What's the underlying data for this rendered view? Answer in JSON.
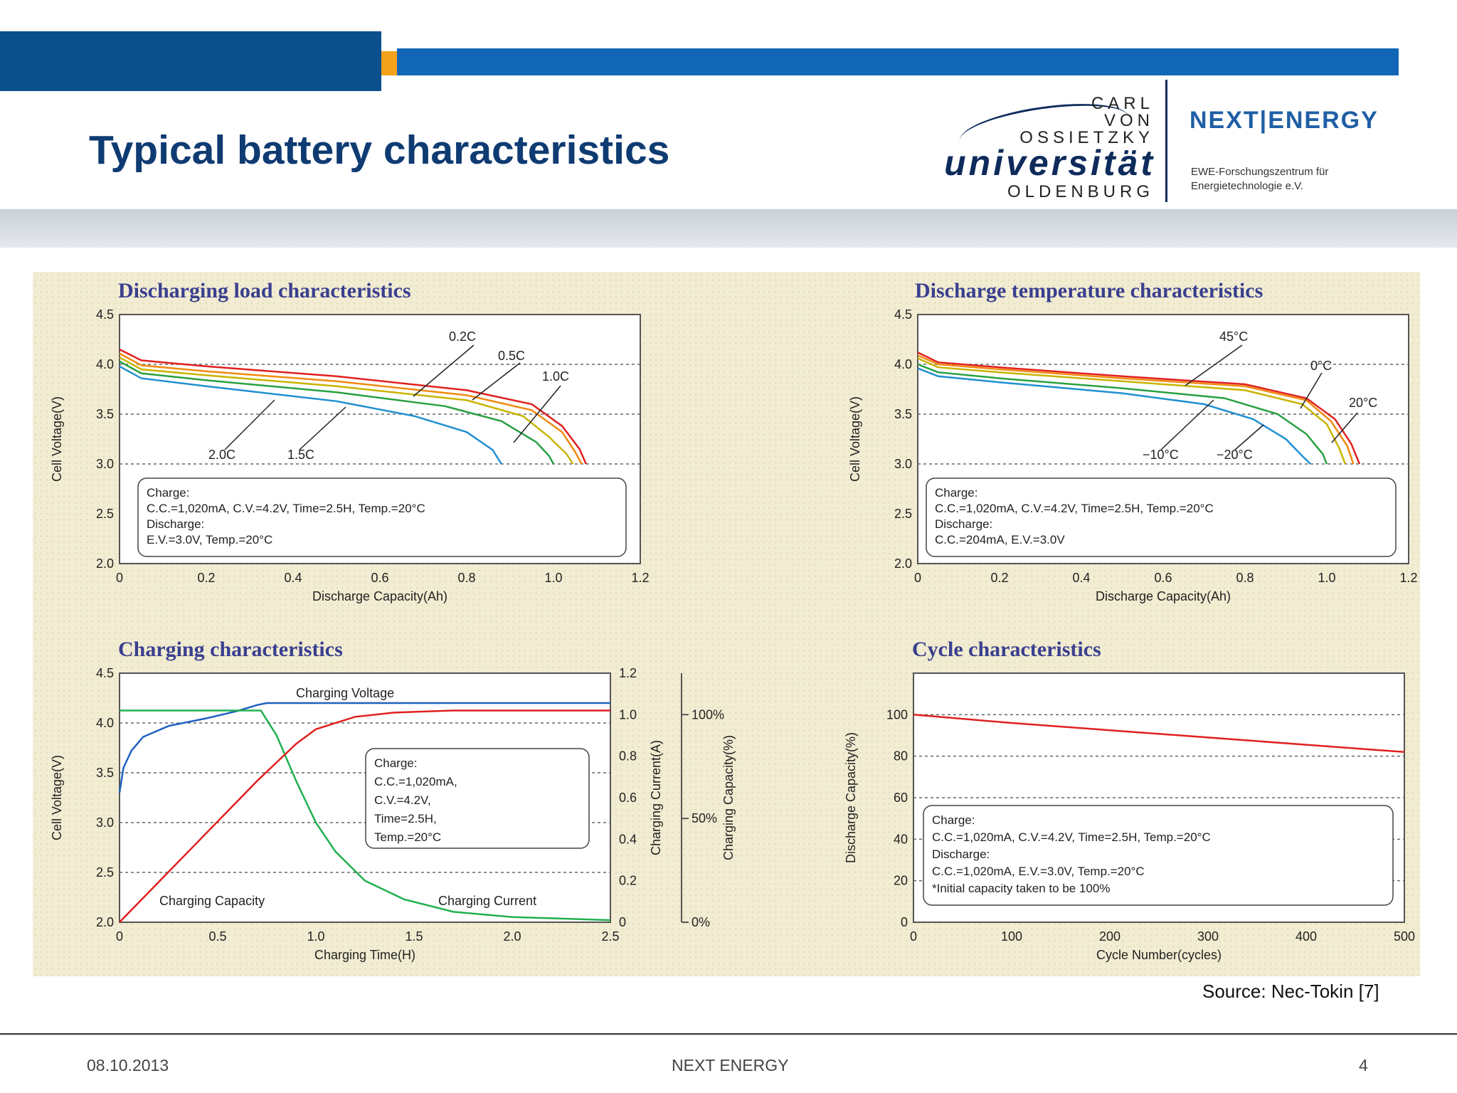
{
  "slide": {
    "title": "Typical battery characteristics",
    "source": "Source: Nec-Tokin [7]",
    "footer": {
      "date": "08.10.2013",
      "center": "NEXT ENERGY",
      "page": "4"
    }
  },
  "logos": {
    "uni_lines": [
      "CARL",
      "VON",
      "OSSIETZKY"
    ],
    "uni_name": "universität",
    "uni_city": "OLDENBURG",
    "ne_name": "NEXT|ENERGY",
    "ne_sub": "EWE-Forschungszentrum für Energietechnologie e.V."
  },
  "colors": {
    "title": "#0e3b72",
    "band_dark": "#0b4f8c",
    "band_blue": "#1266b6",
    "band_orange": "#f5a21b",
    "chart_title": "#3a3f8f",
    "panel_bg": "#f1ecd2"
  },
  "chart_data": [
    {
      "id": "discharge-load",
      "type": "line",
      "title": "Discharging load characteristics",
      "xlabel": "Discharge Capacity(Ah)",
      "ylabel": "Cell Voltage(V)",
      "xlim": [
        0,
        1.2
      ],
      "ylim": [
        2.0,
        4.5
      ],
      "xticks": [
        "0",
        "0.2",
        "0.4",
        "0.6",
        "0.8",
        "1.0",
        "1.2"
      ],
      "yticks": [
        "2.0",
        "2.5",
        "3.0",
        "3.5",
        "4.0",
        "4.5"
      ],
      "grid_y": [
        3.0,
        3.5,
        4.0
      ],
      "series": [
        {
          "name": "0.2C",
          "color": "#e02020",
          "points": [
            [
              0,
              4.15
            ],
            [
              0.05,
              4.04
            ],
            [
              0.2,
              3.98
            ],
            [
              0.5,
              3.88
            ],
            [
              0.8,
              3.74
            ],
            [
              0.95,
              3.6
            ],
            [
              1.02,
              3.38
            ],
            [
              1.06,
              3.15
            ],
            [
              1.075,
              3.0
            ]
          ]
        },
        {
          "name": "0.5C",
          "color": "#f08a10",
          "points": [
            [
              0,
              4.11
            ],
            [
              0.05,
              3.99
            ],
            [
              0.2,
              3.93
            ],
            [
              0.5,
              3.83
            ],
            [
              0.8,
              3.69
            ],
            [
              0.95,
              3.54
            ],
            [
              1.02,
              3.32
            ],
            [
              1.05,
              3.12
            ],
            [
              1.065,
              3.0
            ]
          ]
        },
        {
          "name": "1.0C",
          "color": "#c8b400",
          "points": [
            [
              0,
              4.07
            ],
            [
              0.05,
              3.95
            ],
            [
              0.2,
              3.89
            ],
            [
              0.5,
              3.78
            ],
            [
              0.8,
              3.64
            ],
            [
              0.93,
              3.48
            ],
            [
              0.99,
              3.27
            ],
            [
              1.03,
              3.1
            ],
            [
              1.045,
              3.0
            ]
          ]
        },
        {
          "name": "1.5C",
          "color": "#28a040",
          "points": [
            [
              0,
              4.03
            ],
            [
              0.05,
              3.91
            ],
            [
              0.2,
              3.84
            ],
            [
              0.5,
              3.72
            ],
            [
              0.75,
              3.58
            ],
            [
              0.88,
              3.43
            ],
            [
              0.96,
              3.22
            ],
            [
              0.99,
              3.08
            ],
            [
              1.0,
              3.0
            ]
          ]
        },
        {
          "name": "2.0C",
          "color": "#2090d0",
          "points": [
            [
              0,
              3.98
            ],
            [
              0.05,
              3.86
            ],
            [
              0.2,
              3.78
            ],
            [
              0.5,
              3.63
            ],
            [
              0.68,
              3.48
            ],
            [
              0.8,
              3.32
            ],
            [
              0.86,
              3.14
            ],
            [
              0.88,
              3.0
            ]
          ]
        }
      ],
      "box_lines": [
        "Charge:",
        "C.C.=1,020mA, C.V.=4.2V, Time=2.5H, Temp.=20°C",
        "Discharge:",
        "E.V.=3.0V,  Temp.=20°C"
      ]
    },
    {
      "id": "discharge-temperature",
      "type": "line",
      "title": "Discharge temperature characteristics",
      "xlabel": "Discharge Capacity(Ah)",
      "ylabel": "Cell Voltage(V)",
      "xlim": [
        0,
        1.2
      ],
      "ylim": [
        2.0,
        4.5
      ],
      "xticks": [
        "0",
        "0.2",
        "0.4",
        "0.6",
        "0.8",
        "1.0",
        "1.2"
      ],
      "yticks": [
        "2.0",
        "2.5",
        "3.0",
        "3.5",
        "4.0",
        "4.5"
      ],
      "grid_y": [
        3.0,
        3.5,
        4.0
      ],
      "series": [
        {
          "name": "45°C",
          "color": "#e02020",
          "points": [
            [
              0,
              4.12
            ],
            [
              0.05,
              4.02
            ],
            [
              0.2,
              3.97
            ],
            [
              0.5,
              3.88
            ],
            [
              0.8,
              3.8
            ],
            [
              0.95,
              3.66
            ],
            [
              1.02,
              3.45
            ],
            [
              1.06,
              3.2
            ],
            [
              1.08,
              3.0
            ]
          ]
        },
        {
          "name": "0°C",
          "color": "#f08a10",
          "points": [
            [
              0,
              4.09
            ],
            [
              0.05,
              4.0
            ],
            [
              0.2,
              3.95
            ],
            [
              0.5,
              3.86
            ],
            [
              0.8,
              3.78
            ],
            [
              0.95,
              3.64
            ],
            [
              1.01,
              3.43
            ],
            [
              1.05,
              3.18
            ],
            [
              1.065,
              3.0
            ]
          ]
        },
        {
          "name": "20°C",
          "color": "#c8b400",
          "points": [
            [
              0,
              4.06
            ],
            [
              0.05,
              3.97
            ],
            [
              0.2,
              3.92
            ],
            [
              0.5,
              3.83
            ],
            [
              0.8,
              3.74
            ],
            [
              0.94,
              3.6
            ],
            [
              1.0,
              3.4
            ],
            [
              1.03,
              3.16
            ],
            [
              1.045,
              3.0
            ]
          ]
        },
        {
          "name": "−10°C",
          "color": "#28a040",
          "points": [
            [
              0,
              4.0
            ],
            [
              0.05,
              3.92
            ],
            [
              0.2,
              3.86
            ],
            [
              0.5,
              3.76
            ],
            [
              0.75,
              3.66
            ],
            [
              0.88,
              3.5
            ],
            [
              0.95,
              3.3
            ],
            [
              0.99,
              3.1
            ],
            [
              1.0,
              3.0
            ]
          ]
        },
        {
          "name": "−20°C",
          "color": "#2090d0",
          "points": [
            [
              0,
              3.96
            ],
            [
              0.05,
              3.88
            ],
            [
              0.2,
              3.82
            ],
            [
              0.5,
              3.71
            ],
            [
              0.7,
              3.6
            ],
            [
              0.82,
              3.45
            ],
            [
              0.9,
              3.25
            ],
            [
              0.94,
              3.08
            ],
            [
              0.96,
              3.0
            ]
          ]
        }
      ],
      "box_lines": [
        "Charge:",
        "C.C.=1,020mA, C.V.=4.2V, Time=2.5H, Temp.=20°C",
        "Discharge:",
        "C.C.=204mA, E.V.=3.0V"
      ]
    },
    {
      "id": "charging",
      "type": "line",
      "title": "Charging characteristics",
      "xlabel": "Charging Time(H)",
      "ylabel": "Cell Voltage(V)",
      "y2label": "Charging Current(A)",
      "y3label": "Charging Capacity(%)",
      "xlim": [
        0,
        2.5
      ],
      "ylim": [
        2.0,
        4.5
      ],
      "y2lim": [
        0,
        1.2
      ],
      "xticks": [
        "0",
        "0.5",
        "1.0",
        "1.5",
        "2.0",
        "2.5"
      ],
      "yticks": [
        "2.0",
        "2.5",
        "3.0",
        "3.5",
        "4.0",
        "4.5"
      ],
      "y2ticks": [
        "0",
        "0.2",
        "0.4",
        "0.6",
        "0.8",
        "1.0",
        "1.2"
      ],
      "y3ticks": [
        "0%",
        "50%",
        "100%"
      ],
      "grid_y": [
        2.5,
        3.0,
        3.5,
        4.0
      ],
      "series": [
        {
          "name": "Charging Voltage",
          "color": "#2060c0",
          "axis": "y",
          "points": [
            [
              0,
              3.3
            ],
            [
              0.02,
              3.55
            ],
            [
              0.06,
              3.72
            ],
            [
              0.12,
              3.86
            ],
            [
              0.25,
              3.97
            ],
            [
              0.45,
              4.05
            ],
            [
              0.6,
              4.12
            ],
            [
              0.7,
              4.18
            ],
            [
              0.75,
              4.2
            ],
            [
              2.5,
              4.2
            ]
          ]
        },
        {
          "name": "Charging Current",
          "color": "#20b050",
          "axis": "y2",
          "points": [
            [
              0,
              1.02
            ],
            [
              0.72,
              1.02
            ],
            [
              0.8,
              0.9
            ],
            [
              0.9,
              0.68
            ],
            [
              1.0,
              0.48
            ],
            [
              1.1,
              0.34
            ],
            [
              1.25,
              0.2
            ],
            [
              1.45,
              0.11
            ],
            [
              1.7,
              0.05
            ],
            [
              2.0,
              0.025
            ],
            [
              2.5,
              0.01
            ]
          ]
        },
        {
          "name": "Charging Capacity",
          "color": "#e02020",
          "axis": "y2",
          "points": [
            [
              0,
              0
            ],
            [
              0.7,
              0.68
            ],
            [
              0.8,
              0.77
            ],
            [
              0.9,
              0.86
            ],
            [
              1.0,
              0.93
            ],
            [
              1.2,
              0.99
            ],
            [
              1.4,
              1.01
            ],
            [
              1.7,
              1.02
            ],
            [
              2.5,
              1.02
            ]
          ]
        }
      ],
      "box_lines": [
        "Charge:",
        "C.C.=1,020mA,",
        "C.V.=4.2V,",
        "Time=2.5H,",
        "Temp.=20°C"
      ]
    },
    {
      "id": "cycle",
      "type": "line",
      "title": "Cycle characteristics",
      "xlabel": "Cycle Number(cycles)",
      "ylabel": "Discharge Capacity(%)",
      "xlim": [
        0,
        500
      ],
      "ylim": [
        0,
        120
      ],
      "xticks": [
        "0",
        "100",
        "200",
        "300",
        "400",
        "500"
      ],
      "yticks": [
        "0",
        "20",
        "40",
        "60",
        "80",
        "100"
      ],
      "grid_y": [
        20,
        40,
        60,
        80,
        100
      ],
      "series": [
        {
          "name": "",
          "color": "#e02020",
          "points": [
            [
              0,
              100
            ],
            [
              100,
              96
            ],
            [
              200,
              92.5
            ],
            [
              300,
              89
            ],
            [
              400,
              85.5
            ],
            [
              500,
              82
            ]
          ]
        }
      ],
      "box_lines": [
        "Charge:",
        "C.C.=1,020mA, C.V.=4.2V, Time=2.5H, Temp.=20°C",
        "Discharge:",
        "C.C.=1,020mA, E.V.=3.0V, Temp.=20°C",
        "*Initial capacity taken to be 100%"
      ]
    }
  ]
}
